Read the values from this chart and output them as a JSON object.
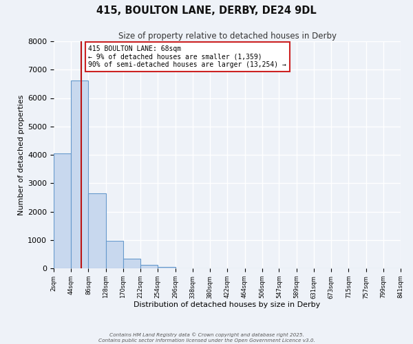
{
  "title": "415, BOULTON LANE, DERBY, DE24 9DL",
  "subtitle": "Size of property relative to detached houses in Derby",
  "xlabel": "Distribution of detached houses by size in Derby",
  "ylabel": "Number of detached properties",
  "bin_edges": [
    2,
    44,
    86,
    128,
    170,
    212,
    254,
    296,
    338,
    380,
    422,
    464,
    506,
    547,
    589,
    631,
    673,
    715,
    757,
    799,
    841
  ],
  "bar_heights": [
    4050,
    6620,
    2650,
    980,
    330,
    115,
    55,
    0,
    0,
    0,
    0,
    0,
    0,
    0,
    0,
    0,
    0,
    0,
    0,
    0
  ],
  "bar_color": "#c8d8ee",
  "bar_edge_color": "#6699cc",
  "property_size": 68,
  "vline_color": "#bb1111",
  "annotation_text": "415 BOULTON LANE: 68sqm\n← 9% of detached houses are smaller (1,359)\n90% of semi-detached houses are larger (13,254) →",
  "annotation_box_color": "#ffffff",
  "annotation_box_edge": "#cc2222",
  "ylim": [
    0,
    8000
  ],
  "yticks": [
    0,
    1000,
    2000,
    3000,
    4000,
    5000,
    6000,
    7000,
    8000
  ],
  "tick_labels": [
    "2sqm",
    "44sqm",
    "86sqm",
    "128sqm",
    "170sqm",
    "212sqm",
    "254sqm",
    "296sqm",
    "338sqm",
    "380sqm",
    "422sqm",
    "464sqm",
    "506sqm",
    "547sqm",
    "589sqm",
    "631sqm",
    "673sqm",
    "715sqm",
    "757sqm",
    "799sqm",
    "841sqm"
  ],
  "bg_color": "#eef2f8",
  "grid_color": "#ffffff",
  "footer_line1": "Contains HM Land Registry data © Crown copyright and database right 2025.",
  "footer_line2": "Contains public sector information licensed under the Open Government Licence v3.0."
}
